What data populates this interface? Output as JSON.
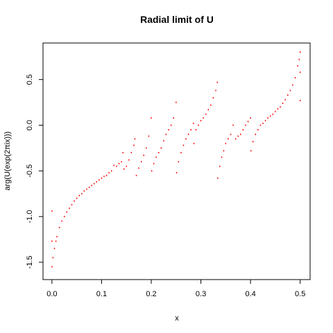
{
  "chart_data": {
    "type": "scatter",
    "title": "Radial limit of U",
    "x_label": "x",
    "y_label": "arg(U(exp(2πix)))",
    "color": "#ff0000",
    "xlim": [
      -0.018,
      0.52
    ],
    "ylim": [
      -1.69,
      0.9
    ],
    "xticks": [
      {
        "value": 0,
        "label": "0.0"
      },
      0.1,
      0.2,
      0.3,
      0.4,
      0.5
    ],
    "yticks": [
      {
        "value": -1.5,
        "label": "-1.5"
      },
      {
        "value": -1,
        "label": "-1.0"
      },
      -0.5,
      {
        "value": 0,
        "label": "0.0"
      },
      0.5
    ],
    "x": [
      0,
      0.002,
      0.005,
      0.008,
      0.01,
      0.015,
      0.02,
      0.025,
      0.03,
      0.035,
      0.04,
      0.045,
      0.05,
      0.055,
      0.06,
      0.065,
      0.07,
      0.075,
      0.08,
      0.085,
      0.09,
      0.095,
      0.1,
      0.105,
      0.11,
      0.115,
      0.12,
      0.125,
      0.13,
      0.135,
      0.14,
      0.143,
      0.145,
      0.15,
      0.155,
      0.16,
      0.165,
      0.167,
      0.17,
      0.175,
      0.18,
      0.185,
      0.19,
      0.195,
      0.2,
      0.201,
      0.205,
      0.21,
      0.215,
      0.22,
      0.225,
      0.23,
      0.235,
      0.24,
      0.245,
      0.25,
      0.251,
      0.255,
      0.26,
      0.265,
      0.27,
      0.275,
      0.28,
      0.285,
      0.286,
      0.29,
      0.295,
      0.3,
      0.305,
      0.31,
      0.315,
      0.32,
      0.325,
      0.33,
      0.333,
      0.334,
      0.338,
      0.342,
      0.346,
      0.35,
      0.355,
      0.36,
      0.365,
      0.37,
      0.375,
      0.38,
      0.385,
      0.39,
      0.395,
      0.4,
      0.401,
      0.405,
      0.41,
      0.415,
      0.42,
      0.425,
      0.43,
      0.435,
      0.44,
      0.445,
      0.45,
      0.455,
      0.46,
      0.465,
      0.47,
      0.475,
      0.48,
      0.485,
      0.49,
      0.495,
      0.498,
      0.5,
      0,
      0,
      0.5,
      0.5
    ],
    "values": [
      -1.55,
      -1.45,
      -1.35,
      -1.27,
      -1.22,
      -1.12,
      -1.05,
      -1.0,
      -0.95,
      -0.91,
      -0.87,
      -0.83,
      -0.8,
      -0.77,
      -0.75,
      -0.72,
      -0.7,
      -0.68,
      -0.66,
      -0.64,
      -0.62,
      -0.6,
      -0.58,
      -0.56,
      -0.55,
      -0.52,
      -0.5,
      -0.44,
      -0.45,
      -0.42,
      -0.4,
      -0.3,
      -0.48,
      -0.45,
      -0.38,
      -0.3,
      -0.22,
      -0.15,
      -0.55,
      -0.47,
      -0.4,
      -0.33,
      -0.25,
      -0.12,
      0.08,
      -0.5,
      -0.42,
      -0.35,
      -0.3,
      -0.25,
      -0.17,
      -0.1,
      -0.05,
      0.0,
      0.08,
      0.25,
      -0.52,
      -0.4,
      -0.3,
      -0.22,
      -0.15,
      -0.1,
      -0.05,
      0.02,
      -0.2,
      -0.05,
      0.0,
      0.05,
      0.08,
      0.12,
      0.17,
      0.22,
      0.3,
      0.38,
      0.47,
      -0.58,
      -0.45,
      -0.35,
      -0.28,
      -0.2,
      -0.15,
      -0.1,
      0.0,
      -0.15,
      -0.12,
      -0.1,
      -0.05,
      0.0,
      0.04,
      0.08,
      -0.28,
      -0.18,
      -0.1,
      -0.05,
      0.0,
      0.02,
      0.05,
      0.08,
      0.1,
      0.12,
      0.15,
      0.18,
      0.2,
      0.24,
      0.28,
      0.33,
      0.38,
      0.44,
      0.52,
      0.65,
      0.72,
      0.8,
      -0.94,
      -1.27,
      0.27,
      0.58
    ]
  }
}
